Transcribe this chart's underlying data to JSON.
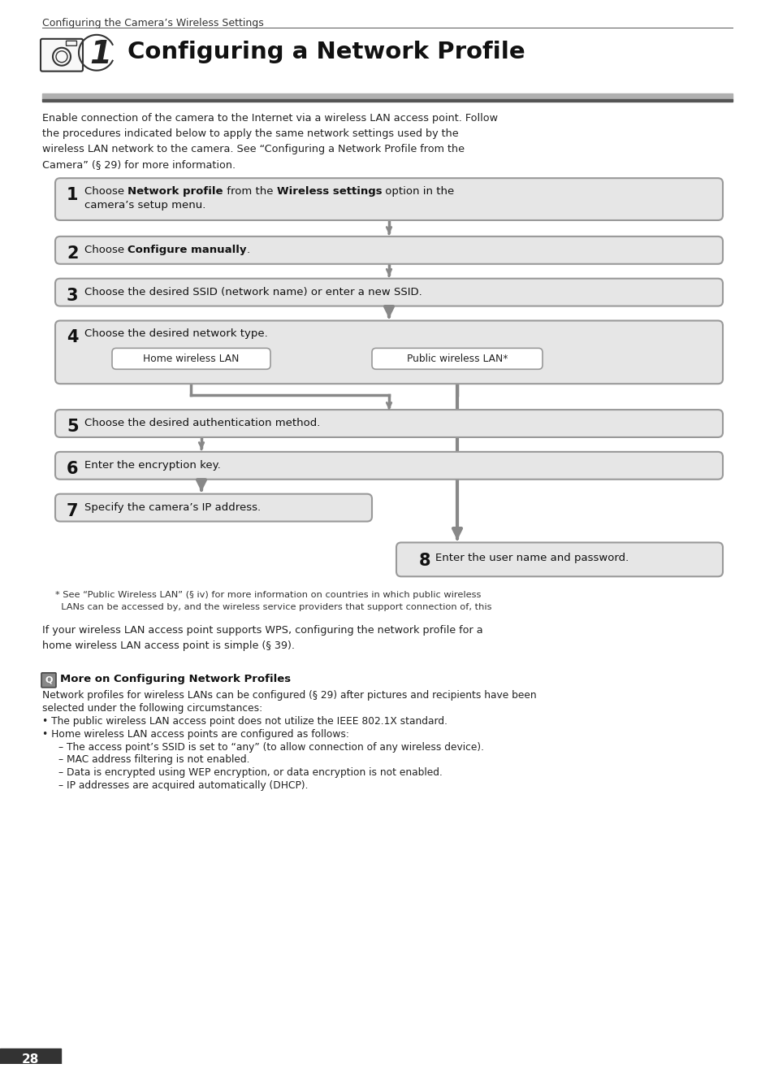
{
  "page_bg": "#ffffff",
  "header_text": "Configuring the Camera’s Wireless Settings",
  "title_text": "Configuring a Network Profile",
  "intro_lines": [
    "Enable connection of the camera to the Internet via a wireless LAN access point. Follow",
    "the procedures indicated below to apply the same network settings used by the",
    "wireless LAN network to the camera. See “Configuring a Network Profile from the",
    "Camera” (§ 29) for more information."
  ],
  "footnote_lines": [
    "* See “Public Wireless LAN” (§ iv) for more information on countries in which public wireless",
    "  LANs can be accessed by, and the wireless service providers that support connection of, this"
  ],
  "wps_lines": [
    "If your wireless LAN access point supports WPS, configuring the network profile for a",
    "home wireless LAN access point is simple (§ 39)."
  ],
  "more_title": "More on Configuring Network Profiles",
  "more_lines": [
    "Network profiles for wireless LANs can be configured (§ 29) after pictures and recipients have been",
    "selected under the following circumstances:",
    "• The public wireless LAN access point does not utilize the IEEE 802.1X standard.",
    "• Home wireless LAN access points are configured as follows:",
    "- The access point’s SSID is set to “any” (to allow connection of any wireless device).",
    "- MAC address filtering is not enabled.",
    "- Data is encrypted using WEP encryption, or data encryption is not enabled.",
    "- IP addresses are acquired automatically (DHCP)."
  ],
  "page_num": "28",
  "box_bg": "#e6e6e6",
  "box_border": "#999999",
  "arrow_color": "#888888",
  "header_bar_light": "#b0b0b0",
  "header_bar_dark": "#555555"
}
